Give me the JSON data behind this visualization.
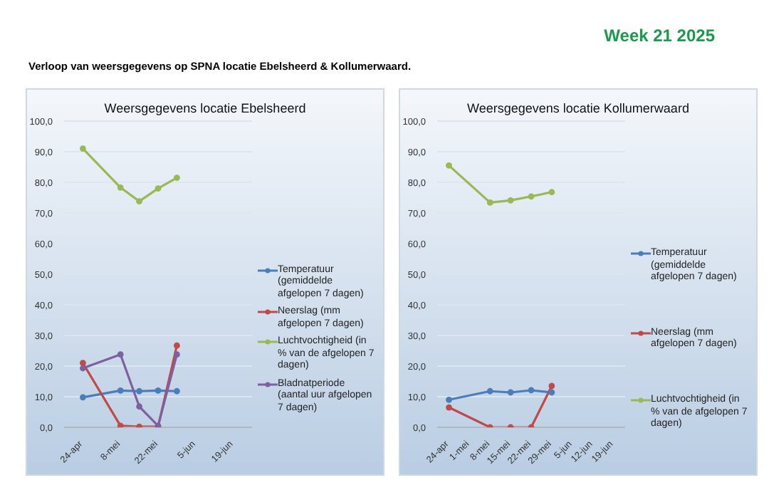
{
  "chart_data": [
    {
      "type": "line",
      "title": "Weersgegevens locatie Ebelsheerd",
      "annotations": [
        "Week 21 2025",
        "Verloop van weersgegevens op SPNA locatie Ebelsheerd & Kollumerwaard."
      ],
      "x": [
        "--04-24",
        "--05-08",
        "--05-15",
        "--05-22",
        "--05-29"
      ],
      "series": [
        {
          "name": "Temperatuur (gemiddelde afgelopen 7 dagen)",
          "color": "#4a7ebb",
          "values": [
            9.8,
            12.0,
            11.8,
            12.0,
            11.8
          ]
        },
        {
          "name": "Neerslag (mm afgelopen 7 dagen)",
          "color": "#be4b48",
          "values": [
            21.0,
            0.5,
            0.2,
            0.2,
            26.7
          ]
        },
        {
          "name": "Luchtvochtigheid (in % van de afgelopen 7 dagen)",
          "color": "#98b954",
          "values": [
            91.0,
            78.3,
            73.8,
            78.0,
            81.5
          ]
        },
        {
          "name": "Bladnatperiode (aantal uur afgelopen 7 dagen)",
          "color": "#7d60a0",
          "values": [
            19.3,
            23.8,
            6.8,
            0.5,
            23.8
          ]
        }
      ],
      "xlim": [
        "--04-17",
        "--06-26"
      ],
      "xticks": [
        {
          "value": "--04-24",
          "label": "24-apr"
        },
        {
          "value": "--05-08",
          "label": "8-mei"
        },
        {
          "value": "--05-22",
          "label": "22-mei"
        },
        {
          "value": "--06-05",
          "label": "5-jun"
        },
        {
          "value": "--06-19",
          "label": "19-jun"
        }
      ],
      "ylim": [
        0,
        100
      ],
      "yticks": [
        {
          "value": 0,
          "label": "0,0"
        },
        {
          "value": 10,
          "label": "10,0"
        },
        {
          "value": 20,
          "label": "20,0"
        },
        {
          "value": 30,
          "label": "30,0"
        },
        {
          "value": 40,
          "label": "40,0"
        },
        {
          "value": 50,
          "label": "50,0"
        },
        {
          "value": 60,
          "label": "60,0"
        },
        {
          "value": 70,
          "label": "70,0"
        },
        {
          "value": 80,
          "label": "80,0"
        },
        {
          "value": 90,
          "label": "90,0"
        },
        {
          "value": 100,
          "label": "100,0"
        }
      ],
      "grid": "y",
      "legend": "right",
      "marker": "circle"
    },
    {
      "type": "line",
      "title": "Weersgegevens locatie Kollumerwaard",
      "x": [
        "--04-24",
        "--05-08",
        "--05-15",
        "--05-22",
        "--05-29"
      ],
      "series": [
        {
          "name": "Temperatuur (gemiddelde afgelopen 7 dagen)",
          "color": "#4a7ebb",
          "values": [
            9.0,
            11.8,
            11.4,
            12.1,
            11.4
          ]
        },
        {
          "name": "Neerslag (mm afgelopen 7 dagen)",
          "color": "#be4b48",
          "values": [
            6.5,
            0.0,
            0.0,
            0.0,
            13.5
          ]
        },
        {
          "name": "Luchtvochtigheid (in % van de afgelopen 7 dagen)",
          "color": "#98b954",
          "values": [
            85.5,
            73.4,
            74.1,
            75.4,
            76.8
          ]
        }
      ],
      "xlim": [
        "--04-20",
        "--06-23"
      ],
      "xticks": [
        {
          "value": "--04-24",
          "label": "24-apr"
        },
        {
          "value": "--05-01",
          "label": "1-mei"
        },
        {
          "value": "--05-08",
          "label": "8-mei"
        },
        {
          "value": "--05-15",
          "label": "15-mei"
        },
        {
          "value": "--05-22",
          "label": "22-mei"
        },
        {
          "value": "--05-29",
          "label": "29-mei"
        },
        {
          "value": "--06-05",
          "label": "5-jun"
        },
        {
          "value": "--06-12",
          "label": "12-jun"
        },
        {
          "value": "--06-19",
          "label": "19-jun"
        }
      ],
      "ylim": [
        0,
        100
      ],
      "yticks": [
        {
          "value": 0,
          "label": "0,0"
        },
        {
          "value": 10,
          "label": "10,0"
        },
        {
          "value": 20,
          "label": "20,0"
        },
        {
          "value": 30,
          "label": "30,0"
        },
        {
          "value": 40,
          "label": "40,0"
        },
        {
          "value": 50,
          "label": "50,0"
        },
        {
          "value": 60,
          "label": "60,0"
        },
        {
          "value": 70,
          "label": "70,0"
        },
        {
          "value": 80,
          "label": "80,0"
        },
        {
          "value": 90,
          "label": "90,0"
        },
        {
          "value": 100,
          "label": "100,0"
        }
      ],
      "grid": "y",
      "legend": "right",
      "marker": "circle"
    }
  ]
}
